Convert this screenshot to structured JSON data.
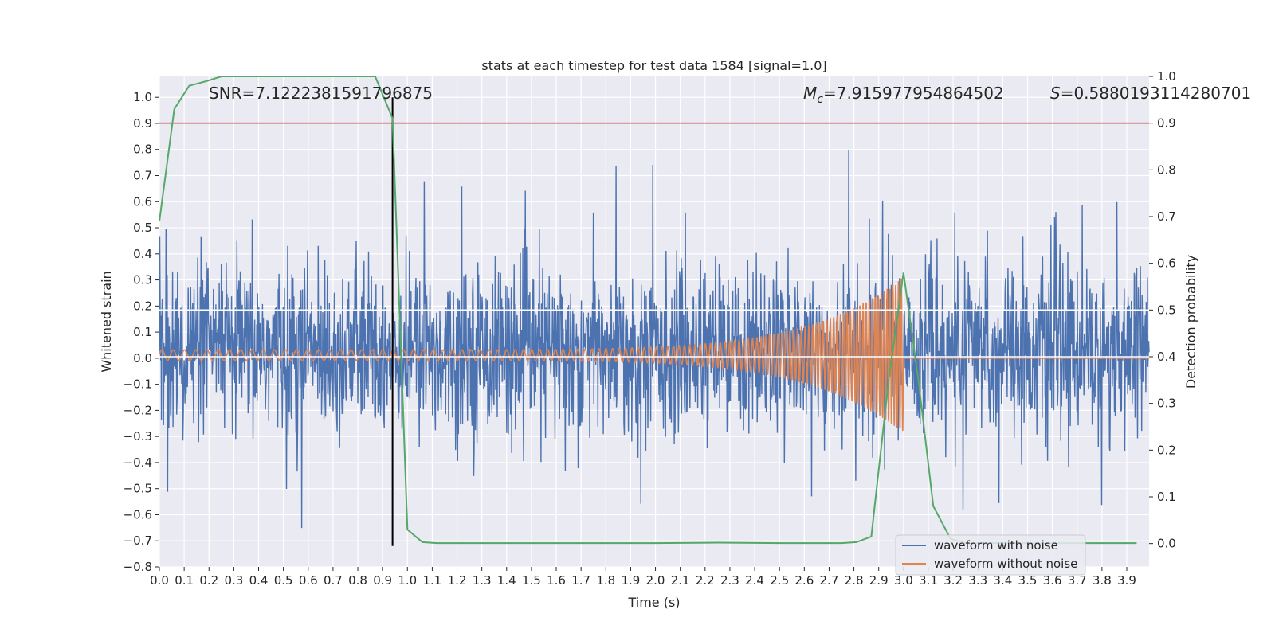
{
  "chart_data": {
    "type": "line",
    "title": "stats at each timestep for test data 1584 [signal=1.0]",
    "xlabel": "Time (s)",
    "ylabel": "Whitened strain",
    "y2label": "Detection probability",
    "xlim": [
      0.0,
      3.99
    ],
    "ylim": [
      -0.8,
      1.08
    ],
    "y2lim": [
      -0.05,
      1.0
    ],
    "xticks": [
      "0.0",
      "0.1",
      "0.2",
      "0.3",
      "0.4",
      "0.5",
      "0.6",
      "0.7",
      "0.8",
      "0.9",
      "1.0",
      "1.1",
      "1.2",
      "1.3",
      "1.4",
      "1.5",
      "1.6",
      "1.7",
      "1.8",
      "1.9",
      "2.0",
      "2.1",
      "2.2",
      "2.3",
      "2.4",
      "2.5",
      "2.6",
      "2.7",
      "2.8",
      "2.9",
      "3.0",
      "3.1",
      "3.2",
      "3.3",
      "3.4",
      "3.5",
      "3.6",
      "3.7",
      "3.8",
      "3.9"
    ],
    "yticks": [
      "−0.8",
      "−0.7",
      "−0.6",
      "−0.5",
      "−0.4",
      "−0.3",
      "−0.2",
      "−0.1",
      "0.0",
      "0.1",
      "0.2",
      "0.3",
      "0.4",
      "0.5",
      "0.6",
      "0.7",
      "0.8",
      "0.9",
      "1.0"
    ],
    "y2ticks": [
      "0.0",
      "0.1",
      "0.2",
      "0.3",
      "0.4",
      "0.5",
      "0.6",
      "0.7",
      "0.8",
      "0.9",
      "1.0"
    ],
    "grid": true,
    "legend_position": "lower-right",
    "annotations": {
      "snr": "SNR=7.122238159179687​5",
      "mc_symbol": "M",
      "mc_sub": "c",
      "mc_value": "=7.915977954864502",
      "s_symbol": "S",
      "s_value": "=0.5880193114280701"
    },
    "series": [
      {
        "name": "waveform with noise",
        "color": "#4c72b0",
        "axis": "left",
        "description_values": {
          "typical_amplitude": 0.3,
          "peak_max": 1.0,
          "peak_min": -0.7
        }
      },
      {
        "name": "waveform without noise",
        "color": "#dd8452",
        "axis": "left",
        "chirp": {
          "start_amplitude": 0.02,
          "peak_amplitude": 0.3,
          "peak_time": 3.0,
          "merger_min": -0.17,
          "start_freq_cycles_per_s": 22,
          "end_freq_cycles_per_s": 90
        }
      },
      {
        "name": "detection probability",
        "color": "#55a868",
        "axis": "right",
        "x": [
          0.0,
          0.06,
          0.12,
          0.19,
          0.25,
          0.31,
          0.38,
          0.44,
          0.5,
          0.56,
          0.62,
          0.69,
          0.75,
          0.81,
          0.87,
          0.94,
          1.0,
          1.06,
          1.12,
          1.19,
          1.5,
          2.0,
          2.25,
          2.5,
          2.75,
          2.81,
          2.87,
          2.94,
          3.0,
          3.06,
          3.12,
          3.19,
          3.25,
          3.5,
          3.75,
          3.94
        ],
        "y": [
          0.69,
          0.93,
          0.98,
          0.99,
          1.0,
          1.0,
          1.0,
          1.0,
          1.0,
          1.0,
          1.0,
          1.0,
          1.0,
          1.0,
          1.0,
          0.91,
          0.03,
          0.003,
          0.001,
          0.001,
          0.001,
          0.001,
          0.002,
          0.001,
          0.001,
          0.003,
          0.015,
          0.35,
          0.58,
          0.35,
          0.08,
          0.01,
          0.001,
          0.001,
          0.001,
          0.001
        ]
      }
    ],
    "threshold_line": {
      "value": 0.9,
      "axis": "right",
      "color": "#c44e52"
    },
    "vertical_line": {
      "x": 0.94,
      "color": "#000000"
    },
    "white_hlines_right_axis": [
      0.4,
      0.5
    ]
  }
}
